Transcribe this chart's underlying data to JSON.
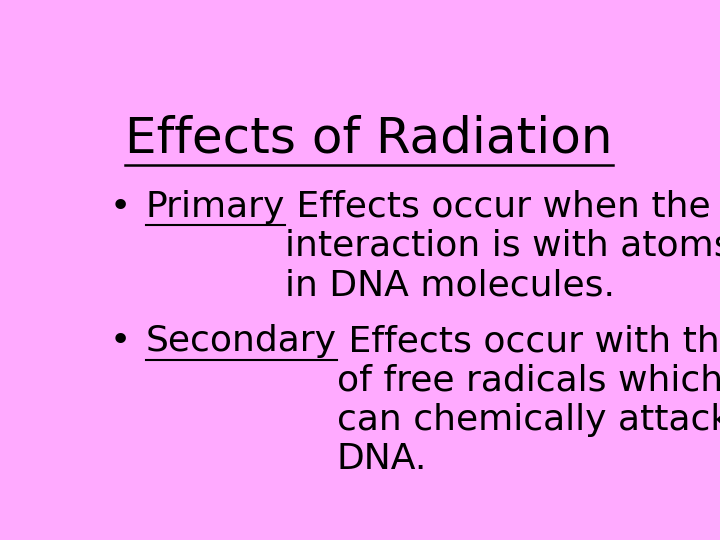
{
  "background_color": "#ffaaff",
  "title": "Effects of Radiation",
  "title_fontsize": 36,
  "title_color": "#000000",
  "bullet1_keyword": "Primary",
  "bullet1_rest": " Effects occur when the initial\ninteraction is with atoms in cells like those\nin DNA molecules.",
  "bullet2_keyword": "Secondary",
  "bullet2_rest": " Effects occur with the formation\nof free radicals which are very reactive and\ncan chemically attack molecules such as\nDNA.",
  "bullet_fontsize": 26,
  "bullet_color": "#000000",
  "font_family": "DejaVu Sans"
}
